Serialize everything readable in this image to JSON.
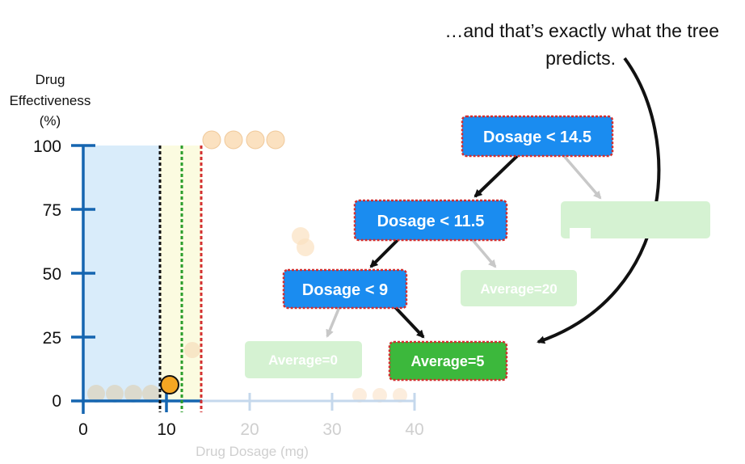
{
  "caption": {
    "line1": "…and that’s exactly what the tree",
    "line2": "predicts."
  },
  "y_axis": {
    "title_lines": [
      "Drug",
      "Effectiveness",
      "(%)"
    ],
    "ticks": [
      "100",
      "75",
      "50",
      "25",
      "0"
    ]
  },
  "x_axis": {
    "title": "Drug Dosage (mg)",
    "ticks": [
      "0",
      "10",
      "20",
      "30",
      "40"
    ]
  },
  "tree": {
    "root": "Dosage < 14.5",
    "node2": "Dosage < 11.5",
    "node3": "Dosage < 9",
    "leaf_avg0": "Average=0",
    "leaf_avg5": "Average=5",
    "leaf_avg20": "Average=20"
  },
  "colors": {
    "axis_blue": "#1565b0",
    "node_blue": "#1a8cf0",
    "node_border_red": "#d32f2f",
    "leaf_green": "#3cb83c",
    "faded_green": "#d5f2d2",
    "region_blue": "#d9ecfa",
    "region_yellow": "#fbfbe0",
    "highlight_orange": "#f5a623",
    "threshold_black": "#111111",
    "threshold_green": "#2a9d2a",
    "threshold_red": "#d32f2f"
  },
  "highlight_point": {
    "dosage_mg": 10.5,
    "effectiveness_pct": 6
  }
}
